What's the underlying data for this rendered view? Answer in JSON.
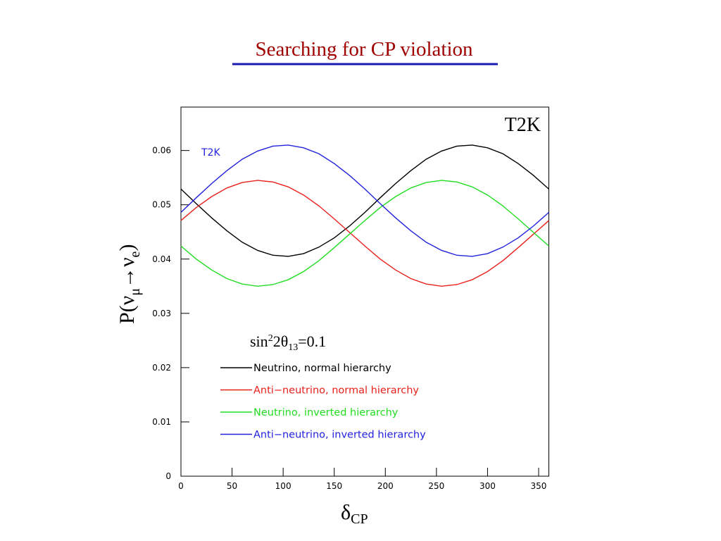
{
  "chart_data": {
    "type": "line",
    "title": "Searching for CP violation",
    "corner_label": "T2K",
    "plot_label": "T2K",
    "annotation": [
      "sin",
      "2",
      "2θ",
      "13",
      "=0.1"
    ],
    "xlabel": [
      "δ",
      "CP"
    ],
    "ylabel": [
      "P(ν",
      "μ",
      "→ν",
      "e",
      ")"
    ],
    "x": [
      0,
      15,
      30,
      45,
      60,
      75,
      90,
      105,
      120,
      135,
      150,
      165,
      180,
      195,
      210,
      225,
      240,
      255,
      270,
      285,
      300,
      315,
      330,
      345,
      360
    ],
    "xlim": [
      0,
      360
    ],
    "xticks": [
      0,
      50,
      100,
      150,
      200,
      250,
      300,
      350
    ],
    "ylim": [
      0,
      0.068
    ],
    "yticks": [
      0,
      0.01,
      0.02,
      0.03,
      0.04,
      0.05,
      0.06
    ],
    "legend": "bottom-left",
    "series": [
      {
        "name": "Neutrino, normal hierarchy",
        "color": "#000000",
        "values": [
          0.0529,
          0.0502,
          0.0476,
          0.0452,
          0.0431,
          0.0416,
          0.0407,
          0.0405,
          0.041,
          0.0422,
          0.0439,
          0.0461,
          0.0486,
          0.0513,
          0.0539,
          0.0563,
          0.0584,
          0.0599,
          0.0608,
          0.061,
          0.0605,
          0.0594,
          0.0576,
          0.0554,
          0.0529
        ]
      },
      {
        "name": "Anti−neutrino, normal hierarchy",
        "color": "#e8211c",
        "values": [
          0.0471,
          0.0495,
          0.0515,
          0.0531,
          0.0541,
          0.0545,
          0.0542,
          0.0533,
          0.0518,
          0.0498,
          0.0474,
          0.0449,
          0.0424,
          0.04,
          0.038,
          0.0364,
          0.0354,
          0.035,
          0.0353,
          0.0362,
          0.0377,
          0.0397,
          0.0421,
          0.0446,
          0.0471
        ]
      },
      {
        "name": "Neutrino, inverted hierarchy",
        "color": "#22dd22",
        "values": [
          0.0424,
          0.04,
          0.038,
          0.0364,
          0.0354,
          0.035,
          0.0353,
          0.0362,
          0.0377,
          0.0397,
          0.0421,
          0.0446,
          0.0471,
          0.0495,
          0.0515,
          0.0531,
          0.0541,
          0.0545,
          0.0542,
          0.0533,
          0.0518,
          0.0498,
          0.0474,
          0.0449,
          0.0424
        ]
      },
      {
        "name": "Anti−neutrino, inverted hierarchy",
        "color": "#2222dd",
        "values": [
          0.0486,
          0.0513,
          0.0539,
          0.0563,
          0.0584,
          0.0599,
          0.0608,
          0.061,
          0.0605,
          0.0594,
          0.0576,
          0.0554,
          0.0529,
          0.0502,
          0.0476,
          0.0452,
          0.0431,
          0.0416,
          0.0407,
          0.0405,
          0.041,
          0.0422,
          0.0439,
          0.0461,
          0.0486
        ]
      }
    ]
  }
}
